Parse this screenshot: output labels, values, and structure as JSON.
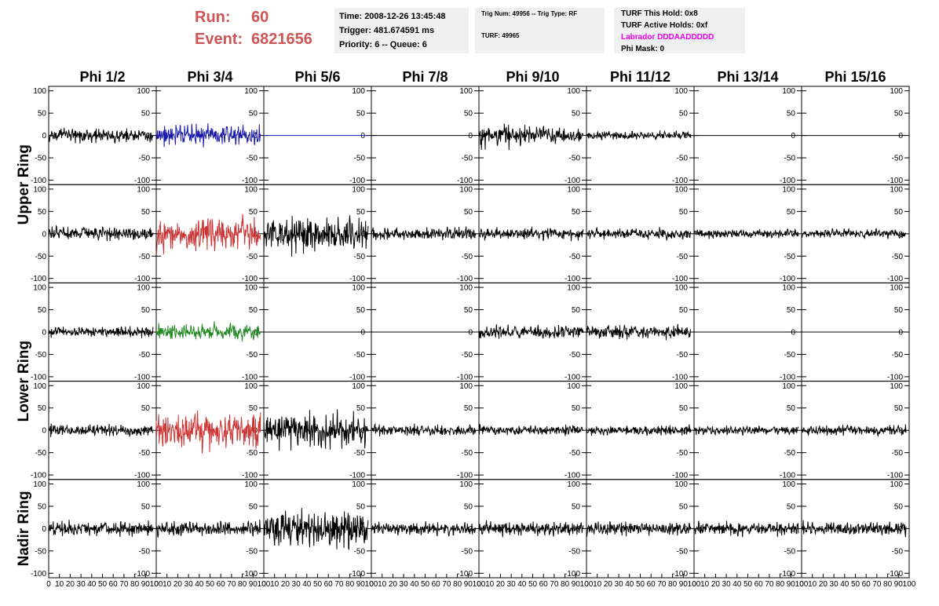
{
  "header": {
    "run_label": "Run:",
    "run_value": "60",
    "event_label": "Event:",
    "event_value": "6821656",
    "time": "Time: 2008-12-26 13:45:48",
    "trigger": "Trigger: 481.674591 ms",
    "priority": "Priority: 6 -- Queue: 6",
    "trig_num": "Trig Num: 49956 -- Trig Type: RF",
    "turf": "TURF: 49965",
    "turf_hold": "TURF This Hold: 0x8",
    "turf_active": "TURF Active Holds: 0xf",
    "labrador": "Labrador DDDAADDDDD",
    "phi_mask": "Phi Mask: 0"
  },
  "colors": {
    "run_text": "#cc5555",
    "blue": "#1a1aaa",
    "red": "#cc3333",
    "green": "#228822",
    "black": "#000000",
    "magenta": "#ee00ee"
  },
  "chart_data": {
    "type": "line",
    "columns": [
      "Phi 1/2",
      "Phi 3/4",
      "Phi 5/6",
      "Phi 7/8",
      "Phi 9/10",
      "Phi 11/12",
      "Phi 13/14",
      "Phi 15/16"
    ],
    "row_labels": [
      {
        "text": "Upper Ring",
        "rows": [
          0,
          1
        ]
      },
      {
        "text": "Lower Ring",
        "rows": [
          2,
          3
        ]
      },
      {
        "text": "Nadir Ring",
        "rows": [
          4
        ]
      }
    ],
    "xlim": [
      0,
      100
    ],
    "ylim": [
      -110,
      110
    ],
    "x_tick_labels": [
      "0",
      "10",
      "20",
      "30",
      "40",
      "50",
      "60",
      "70",
      "80",
      "90",
      "100"
    ],
    "y_tick_labels": [
      "100",
      "50",
      "0",
      "-50",
      "-100"
    ],
    "x_end": 97,
    "grid": false,
    "waveforms": [
      [
        {
          "amp": 20,
          "color": "black"
        },
        {
          "amp": 30,
          "color": "blue"
        },
        {
          "amp": 0,
          "color": "blue"
        },
        {
          "amp": 0,
          "color": "black"
        },
        {
          "amp": 25,
          "color": "black",
          "decay": true
        },
        {
          "amp": 12,
          "color": "black"
        },
        {
          "amp": 0,
          "color": "black"
        },
        {
          "amp": 0,
          "color": "black"
        }
      ],
      [
        {
          "amp": 20,
          "color": "black"
        },
        {
          "amp": 50,
          "color": "red"
        },
        {
          "amp": 55,
          "color": "black"
        },
        {
          "amp": 18,
          "color": "black"
        },
        {
          "amp": 18,
          "color": "black"
        },
        {
          "amp": 16,
          "color": "black"
        },
        {
          "amp": 13,
          "color": "black"
        },
        {
          "amp": 13,
          "color": "black"
        }
      ],
      [
        {
          "amp": 15,
          "color": "black"
        },
        {
          "amp": 25,
          "color": "green"
        },
        {
          "amp": 0,
          "color": "black"
        },
        {
          "amp": 0,
          "color": "black"
        },
        {
          "amp": 20,
          "color": "black"
        },
        {
          "amp": 20,
          "color": "black"
        },
        {
          "amp": 0,
          "color": "black"
        },
        {
          "amp": 0,
          "color": "black"
        }
      ],
      [
        {
          "amp": 18,
          "color": "black"
        },
        {
          "amp": 55,
          "color": "red"
        },
        {
          "amp": 50,
          "color": "black"
        },
        {
          "amp": 16,
          "color": "black"
        },
        {
          "amp": 15,
          "color": "black"
        },
        {
          "amp": 15,
          "color": "black"
        },
        {
          "amp": 13,
          "color": "black"
        },
        {
          "amp": 16,
          "color": "black"
        }
      ],
      [
        {
          "amp": 22,
          "color": "black"
        },
        {
          "amp": 22,
          "color": "black"
        },
        {
          "amp": 55,
          "color": "black"
        },
        {
          "amp": 20,
          "color": "black"
        },
        {
          "amp": 20,
          "color": "black"
        },
        {
          "amp": 20,
          "color": "black"
        },
        {
          "amp": 20,
          "color": "black"
        },
        {
          "amp": 20,
          "color": "black"
        }
      ]
    ]
  }
}
